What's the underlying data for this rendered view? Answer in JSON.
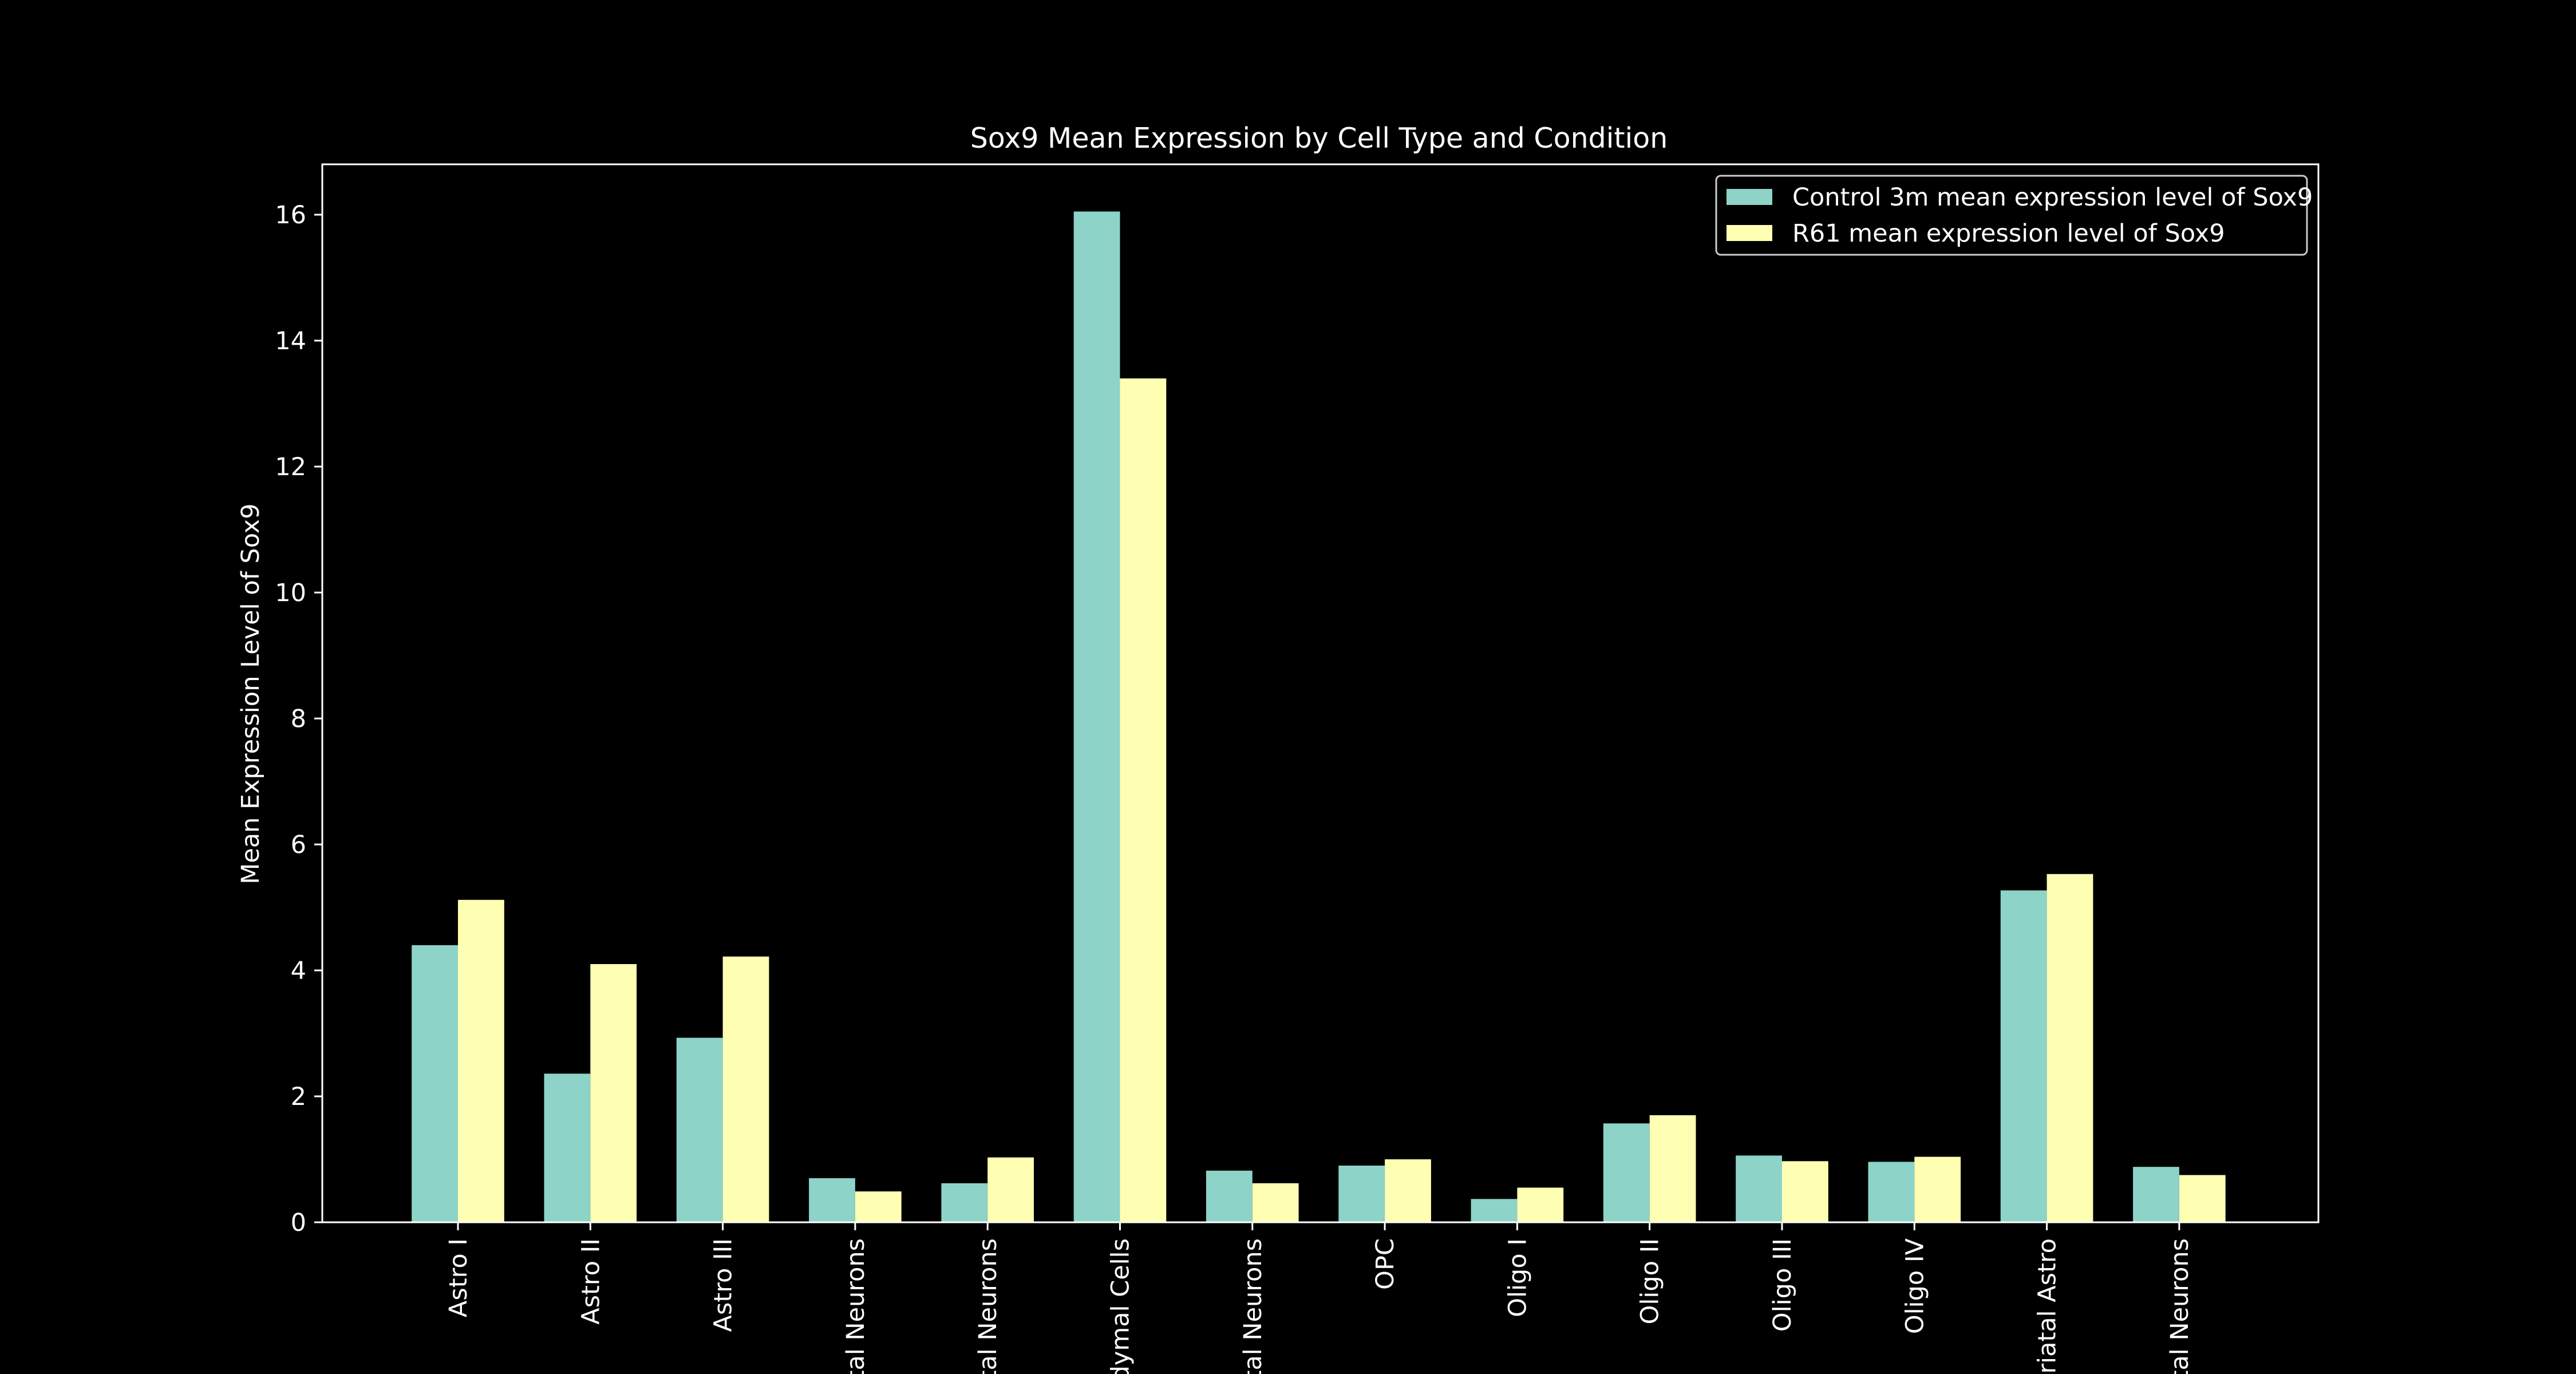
{
  "chart_data": {
    "type": "bar",
    "title": "Sox9 Mean Expression by Cell Type and Condition",
    "xlabel": "",
    "ylabel": "Mean Expression Level of Sox9",
    "ylim": [
      0,
      16.8
    ],
    "yticks": [
      0,
      2,
      4,
      6,
      8,
      10,
      12,
      14,
      16
    ],
    "ytick_labels": [
      "0",
      "2",
      "4",
      "6",
      "8",
      "10",
      "12",
      "14",
      "16"
    ],
    "grid": false,
    "legend_position": "top-right",
    "background": "#000000",
    "foreground": "#ffffff",
    "categories": [
      "Astro I",
      "Astro II",
      "Astro III",
      "ital Neurons",
      "tal Neurons",
      "dymal Cells",
      "tal Neurons",
      "OPC",
      "Oligo I",
      "Oligo II",
      "Oligo III",
      "Oligo IV",
      "triatal Astro",
      "tal Neurons"
    ],
    "series": [
      {
        "name": "Control 3m mean expression level of Sox9",
        "color": "#8dd3c7",
        "values": [
          4.4,
          2.36,
          2.93,
          0.7,
          0.62,
          16.05,
          0.82,
          0.9,
          0.37,
          1.57,
          1.06,
          0.96,
          5.27,
          0.88
        ]
      },
      {
        "name": "R61 mean expression level of Sox9",
        "color": "#ffffb3",
        "values": [
          5.12,
          4.1,
          4.22,
          0.49,
          1.03,
          13.4,
          0.62,
          1.0,
          0.55,
          1.7,
          0.97,
          1.04,
          5.53,
          0.75
        ]
      }
    ]
  }
}
